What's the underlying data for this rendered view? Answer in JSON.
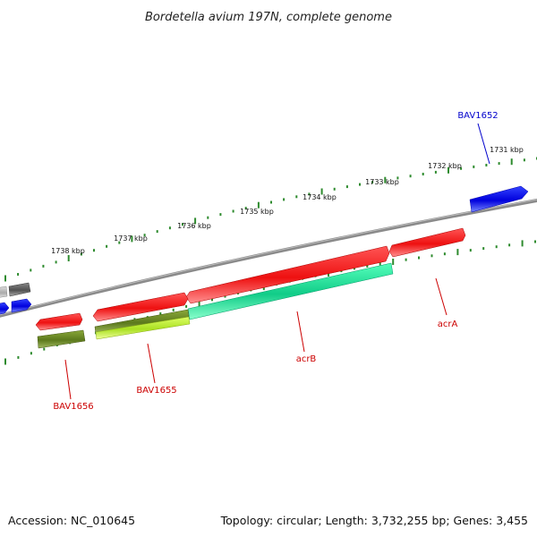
{
  "title": "Bordetella avium 197N, complete genome",
  "footer": {
    "accession": "Accession: NC_010645",
    "summary": "Topology: circular; Length: 3,732,255 bp; Genes: 3,455"
  },
  "colors": {
    "backbone": "#8a8a8a",
    "tick": "#2e8b2e",
    "label_red": "#cc0000",
    "label_blue": "#0000cc",
    "gene_red": "#ee1111",
    "gene_blue": "#0000ee",
    "gene_teal": "#22dd99",
    "gene_olive": "#6b8e23",
    "gene_lime": "#bbee33",
    "gene_gray": "#606060",
    "gene_lightgray": "#b8b8b8"
  },
  "scale_labels": [
    "1738 kbp",
    "1737 kbp",
    "1736 kbp",
    "1735 kbp",
    "1734 kbp",
    "1733 kbp",
    "1732 kbp",
    "1731 kbp"
  ],
  "gene_labels": [
    {
      "name": "BAV1652",
      "color": "blue"
    },
    {
      "name": "acrA",
      "color": "red"
    },
    {
      "name": "acrB",
      "color": "red"
    },
    {
      "name": "BAV1655",
      "color": "red"
    },
    {
      "name": "BAV1656",
      "color": "red"
    }
  ]
}
